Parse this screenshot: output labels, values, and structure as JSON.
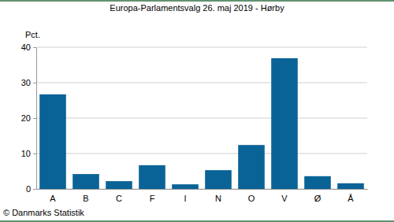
{
  "chart_data": {
    "type": "bar",
    "title": "Europa-Parlamentsvalg 26. maj 2019 - Hørby",
    "y_label": "Pct.",
    "categories": [
      "A",
      "B",
      "C",
      "F",
      "I",
      "N",
      "O",
      "V",
      "Ø",
      "Å"
    ],
    "values": [
      26.7,
      4.2,
      2.2,
      6.7,
      1.3,
      5.3,
      12.4,
      36.9,
      3.6,
      1.6
    ],
    "color": "#0a6396",
    "ylim": [
      0,
      40
    ],
    "yticks": [
      0,
      10,
      20,
      30,
      40
    ],
    "grid": true,
    "annotations": [
      "© Danmarks Statistik"
    ]
  }
}
